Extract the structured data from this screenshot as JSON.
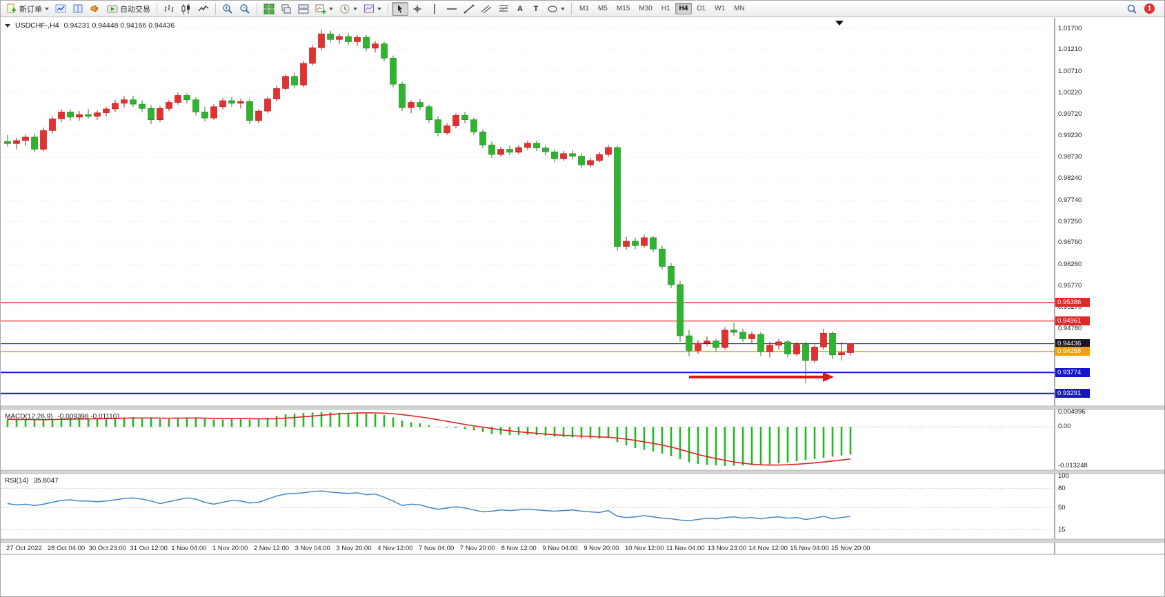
{
  "colors": {
    "up": "#e33030",
    "down": "#2eb52e",
    "up_stroke": "#a81818",
    "down_stroke": "#1d7f1d",
    "macd_hist": "#22b822",
    "macd_signal": "#e02020",
    "rsi_line": "#3f86c8",
    "grid": "#e9e9e9",
    "axis_line": "#555555"
  },
  "toolbar": {
    "buttons": [
      {
        "name": "new-order-button",
        "icon": "doc-plus",
        "label": "新订单",
        "dropdown": true
      },
      {
        "name": "charts-window-button",
        "icon": "chart-up"
      },
      {
        "name": "market-depth-button",
        "icon": "book"
      },
      {
        "name": "alerts-button",
        "icon": "megaphone"
      },
      {
        "name": "auto-trading-button",
        "icon": "autotrade",
        "label": "自动交易"
      },
      {
        "sep": true
      },
      {
        "name": "bar-chart-button",
        "icon": "bars"
      },
      {
        "name": "candlestick-chart-button",
        "icon": "candles"
      },
      {
        "name": "line-chart-button",
        "icon": "linechart"
      },
      {
        "sep": true
      },
      {
        "name": "zoom-in-button",
        "icon": "zoom-in"
      },
      {
        "name": "zoom-out-button",
        "icon": "zoom-out"
      },
      {
        "sep": true
      },
      {
        "name": "tile-windows-button",
        "icon": "tile"
      },
      {
        "name": "cascade-windows-button",
        "icon": "cascade"
      },
      {
        "name": "arrange-windows-button",
        "icon": "arrange"
      },
      {
        "name": "new-chart-button",
        "icon": "new-chart",
        "dropdown": true
      },
      {
        "name": "periods-button",
        "icon": "clock",
        "dropdown": true
      },
      {
        "name": "templates-button",
        "icon": "template",
        "dropdown": true
      },
      {
        "sep": true
      },
      {
        "name": "cursor-button",
        "icon": "cursor",
        "active": true
      },
      {
        "name": "crosshair-button",
        "icon": "crosshair"
      },
      {
        "name": "vertical-line-button",
        "icon": "vline"
      },
      {
        "name": "horizontal-line-button",
        "icon": "hline"
      },
      {
        "name": "trendline-button",
        "icon": "trendline"
      },
      {
        "name": "channel-button",
        "icon": "channel"
      },
      {
        "name": "fibonacci-button",
        "icon": "fibo"
      },
      {
        "name": "text-tool-button",
        "icon": "glyph",
        "glyph": "A"
      },
      {
        "name": "label-tool-button",
        "icon": "glyph",
        "glyph": "T"
      },
      {
        "name": "shapes-button",
        "icon": "shapes",
        "dropdown": true
      },
      {
        "sep": true
      }
    ],
    "timeframes": [
      "M1",
      "M5",
      "M15",
      "M30",
      "H1",
      "H4",
      "D1",
      "W1",
      "MN"
    ],
    "active_timeframe": "H4",
    "notification_count": "1"
  },
  "chart_data": {
    "type": "candlestick",
    "title": "USDCHF-,H4",
    "ohlc_text": "0.94231 0.94448 0.94166 0.94436",
    "ylim": [
      0.93,
      1.019
    ],
    "y_axis_labels": [
      "1.01700",
      "1.01210",
      "1.00710",
      "1.00220",
      "0.99720",
      "0.99230",
      "0.98730",
      "0.98240",
      "0.97740",
      "0.97250",
      "0.96760",
      "0.96260",
      "0.95770",
      "0.95270",
      "0.94780"
    ],
    "h_lines": [
      {
        "price": 0.95386,
        "label": "0.95386",
        "color": "#e02828",
        "width": 1.2
      },
      {
        "price": 0.94961,
        "label": "0.94961",
        "color": "#e02828",
        "width": 1.2
      },
      {
        "price": 0.94436,
        "label": "0.94436",
        "color": "#111111",
        "width": 1,
        "label_bg": "#15181e"
      },
      {
        "price": 0.94258,
        "label": "0.94258",
        "color": "#f5a000",
        "width": 1.5
      },
      {
        "price": 0.93774,
        "label": "0.93774",
        "color": "#1515cd",
        "width": 2
      },
      {
        "price": 0.93291,
        "label": "0.93291",
        "color": "#1515cd",
        "width": 2
      }
    ],
    "arrow": {
      "from_bar": 76,
      "to_bar": 92,
      "price": 0.9367,
      "color": "#d61a1a"
    },
    "candles": [
      [
        0.991,
        0.9925,
        0.9898,
        0.9905
      ],
      [
        0.9905,
        0.9918,
        0.9892,
        0.9912
      ],
      [
        0.9912,
        0.9926,
        0.99,
        0.992
      ],
      [
        0.992,
        0.9928,
        0.9885,
        0.9892
      ],
      [
        0.9892,
        0.9942,
        0.9888,
        0.9935
      ],
      [
        0.9935,
        0.9968,
        0.9928,
        0.9962
      ],
      [
        0.9962,
        0.9985,
        0.9955,
        0.9978
      ],
      [
        0.9978,
        0.9984,
        0.9958,
        0.9966
      ],
      [
        0.9966,
        0.998,
        0.9958,
        0.9972
      ],
      [
        0.9972,
        0.9985,
        0.9962,
        0.9968
      ],
      [
        0.9968,
        0.9982,
        0.996,
        0.9976
      ],
      [
        0.9976,
        0.999,
        0.9968,
        0.9985
      ],
      [
        0.9985,
        1.0006,
        0.9978,
        0.9998
      ],
      [
        0.9998,
        1.0014,
        0.9988,
        1.0006
      ],
      [
        1.0006,
        1.0015,
        0.999,
        0.9996
      ],
      [
        0.9996,
        1.0005,
        0.9978,
        0.9986
      ],
      [
        0.9986,
        0.9994,
        0.995,
        0.996
      ],
      [
        0.996,
        0.9992,
        0.9955,
        0.9986
      ],
      [
        0.9986,
        1.0006,
        0.998,
        1.0
      ],
      [
        1.0,
        1.0022,
        0.9995,
        1.0016
      ],
      [
        1.0016,
        1.0021,
        0.9998,
        1.0006
      ],
      [
        1.0006,
        1.0012,
        0.997,
        0.9978
      ],
      [
        0.9978,
        0.999,
        0.9956,
        0.9964
      ],
      [
        0.9964,
        0.9996,
        0.996,
        0.999
      ],
      [
        0.999,
        1.001,
        0.9984,
        1.0004
      ],
      [
        1.0004,
        1.0012,
        0.999,
        0.9998
      ],
      [
        0.9998,
        1.0008,
        0.9986,
        1.0002
      ],
      [
        1.0002,
        1.0008,
        0.995,
        0.9958
      ],
      [
        0.9958,
        0.9985,
        0.9952,
        0.998
      ],
      [
        0.998,
        1.0012,
        0.9975,
        1.0008
      ],
      [
        1.0008,
        1.0038,
        1.0002,
        1.0032
      ],
      [
        1.0032,
        1.0065,
        1.0028,
        1.006
      ],
      [
        1.006,
        1.0068,
        1.0032,
        1.004
      ],
      [
        1.004,
        1.0095,
        1.0035,
        1.009
      ],
      [
        1.009,
        1.0132,
        1.0085,
        1.0126
      ],
      [
        1.0126,
        1.0168,
        1.012,
        1.0158
      ],
      [
        1.0158,
        1.0165,
        1.0138,
        1.0145
      ],
      [
        1.0145,
        1.0158,
        1.0135,
        1.0152
      ],
      [
        1.0152,
        1.016,
        1.0132,
        1.014
      ],
      [
        1.014,
        1.0155,
        1.013,
        1.015
      ],
      [
        1.015,
        1.0156,
        1.0118,
        1.0125
      ],
      [
        1.0125,
        1.0142,
        1.0115,
        1.0135
      ],
      [
        1.0135,
        1.014,
        1.0095,
        1.0102
      ],
      [
        1.0102,
        1.0108,
        1.0035,
        1.0042
      ],
      [
        1.0042,
        1.0048,
        0.998,
        0.9988
      ],
      [
        0.9988,
        1.0005,
        0.9975,
        1.0
      ],
      [
        1.0,
        1.0008,
        0.9982,
        0.999
      ],
      [
        0.999,
        0.9995,
        0.9952,
        0.996
      ],
      [
        0.996,
        0.9968,
        0.9922,
        0.993
      ],
      [
        0.993,
        0.9952,
        0.9925,
        0.9946
      ],
      [
        0.9946,
        0.9975,
        0.994,
        0.997
      ],
      [
        0.997,
        0.9978,
        0.9952,
        0.996
      ],
      [
        0.996,
        0.9965,
        0.9925,
        0.9932
      ],
      [
        0.9932,
        0.9938,
        0.9895,
        0.9902
      ],
      [
        0.9902,
        0.991,
        0.9872,
        0.988
      ],
      [
        0.988,
        0.9898,
        0.9875,
        0.9892
      ],
      [
        0.9892,
        0.99,
        0.9878,
        0.9885
      ],
      [
        0.9885,
        0.9902,
        0.988,
        0.9896
      ],
      [
        0.9896,
        0.9912,
        0.989,
        0.9906
      ],
      [
        0.9906,
        0.9912,
        0.9888,
        0.9895
      ],
      [
        0.9895,
        0.9902,
        0.9878,
        0.9886
      ],
      [
        0.9886,
        0.9892,
        0.9862,
        0.987
      ],
      [
        0.987,
        0.9888,
        0.9865,
        0.9882
      ],
      [
        0.9882,
        0.989,
        0.9868,
        0.9876
      ],
      [
        0.9876,
        0.9882,
        0.9848,
        0.9856
      ],
      [
        0.9856,
        0.9872,
        0.985,
        0.9866
      ],
      [
        0.9866,
        0.9886,
        0.9862,
        0.988
      ],
      [
        0.988,
        0.9902,
        0.9875,
        0.9896
      ],
      [
        0.9896,
        0.99,
        0.9658,
        0.9668
      ],
      [
        0.9668,
        0.969,
        0.966,
        0.968
      ],
      [
        0.968,
        0.9688,
        0.9662,
        0.967
      ],
      [
        0.967,
        0.9695,
        0.9665,
        0.9688
      ],
      [
        0.9688,
        0.9692,
        0.9655,
        0.9662
      ],
      [
        0.9662,
        0.967,
        0.9615,
        0.9622
      ],
      [
        0.9622,
        0.963,
        0.9572,
        0.958
      ],
      [
        0.958,
        0.9588,
        0.9448,
        0.9462
      ],
      [
        0.9462,
        0.9475,
        0.9415,
        0.9428
      ],
      [
        0.9428,
        0.9452,
        0.942,
        0.9445
      ],
      [
        0.9445,
        0.946,
        0.9438,
        0.945
      ],
      [
        0.945,
        0.9455,
        0.9425,
        0.9435
      ],
      [
        0.9435,
        0.9482,
        0.943,
        0.9475
      ],
      [
        0.9475,
        0.9492,
        0.9462,
        0.947
      ],
      [
        0.947,
        0.9478,
        0.9448,
        0.9455
      ],
      [
        0.9455,
        0.9472,
        0.9445,
        0.9465
      ],
      [
        0.9465,
        0.947,
        0.9415,
        0.9425
      ],
      [
        0.9425,
        0.9448,
        0.9412,
        0.944
      ],
      [
        0.944,
        0.9455,
        0.943,
        0.9448
      ],
      [
        0.9448,
        0.9452,
        0.9412,
        0.942
      ],
      [
        0.942,
        0.9448,
        0.9415,
        0.9442
      ],
      [
        0.9442,
        0.9448,
        0.9352,
        0.9405
      ],
      [
        0.9405,
        0.9442,
        0.94,
        0.9436
      ],
      [
        0.9436,
        0.9478,
        0.943,
        0.9468
      ],
      [
        0.9468,
        0.9472,
        0.9408,
        0.9418
      ],
      [
        0.9418,
        0.9448,
        0.9405,
        0.94231
      ],
      [
        0.94231,
        0.94448,
        0.94166,
        0.94436
      ]
    ],
    "time_labels": [
      "27 Oct 2022",
      "28 Oct 04:00",
      "30 Oct 23:00",
      "31 Oct 12:00",
      "1 Nov 04:00",
      "1 Nov 20:00",
      "2 Nov 12:00",
      "3 Nov 04:00",
      "3 Nov 20:00",
      "4 Nov 12:00",
      "7 Nov 04:00",
      "7 Nov 20:00",
      "8 Nov 12:00",
      "9 Nov 04:00",
      "9 Nov 20:00",
      "10 Nov 12:00",
      "11 Nov 04:00",
      "13 Nov 23:00",
      "14 Nov 12:00",
      "15 Nov 04:00",
      "15 Nov 20:00"
    ],
    "macd": {
      "label": "MACD(12,26,9)",
      "values_text": "-0.009398 -0.011101",
      "axis": [
        "0.004996",
        "0.00",
        "-0.013248"
      ],
      "ylim": [
        -0.014,
        0.0052
      ],
      "signal_period": 9,
      "histogram": [
        0.0026,
        0.0024,
        0.0025,
        0.0023,
        0.0024,
        0.0027,
        0.003,
        0.0031,
        0.003,
        0.0029,
        0.0028,
        0.0029,
        0.003,
        0.0032,
        0.0033,
        0.0031,
        0.0029,
        0.0026,
        0.0027,
        0.003,
        0.0032,
        0.0031,
        0.0028,
        0.0025,
        0.0025,
        0.0027,
        0.0027,
        0.0025,
        0.0026,
        0.0031,
        0.0037,
        0.0043,
        0.0045,
        0.0047,
        0.0049,
        0.004996,
        0.0049,
        0.0048,
        0.0047,
        0.0047,
        0.0045,
        0.0044,
        0.004,
        0.0032,
        0.0022,
        0.0016,
        0.0012,
        0.0006,
        0.0001,
        -0.0003,
        -0.0004,
        -0.0007,
        -0.0012,
        -0.0018,
        -0.0024,
        -0.0026,
        -0.0028,
        -0.0028,
        -0.0027,
        -0.0028,
        -0.003,
        -0.0033,
        -0.0034,
        -0.0036,
        -0.0039,
        -0.004,
        -0.004,
        -0.0038,
        -0.0052,
        -0.0063,
        -0.0072,
        -0.0078,
        -0.0084,
        -0.0091,
        -0.0099,
        -0.011,
        -0.012,
        -0.0126,
        -0.0129,
        -0.0131,
        -0.013248,
        -0.0132,
        -0.0131,
        -0.013,
        -0.0129,
        -0.0127,
        -0.0124,
        -0.0121,
        -0.0117,
        -0.0113,
        -0.0109,
        -0.0105,
        -0.0101,
        -0.0097,
        -0.009398
      ]
    },
    "rsi": {
      "label": "RSI(14)",
      "value_text": "35.8047",
      "axis": [
        "100",
        "80",
        "50",
        "15"
      ],
      "levels": [
        80,
        50,
        15
      ],
      "ylim": [
        0,
        100
      ],
      "values": [
        56,
        54,
        55,
        53,
        55,
        58,
        61,
        62,
        60,
        60,
        59,
        60,
        62,
        64,
        65,
        63,
        60,
        56,
        59,
        62,
        65,
        63,
        58,
        55,
        58,
        61,
        60,
        57,
        58,
        63,
        68,
        71,
        72,
        73,
        75,
        76,
        74,
        73,
        72,
        73,
        70,
        71,
        66,
        60,
        53,
        55,
        54,
        50,
        47,
        49,
        51,
        49,
        46,
        43,
        44,
        46,
        45,
        46,
        47,
        46,
        45,
        44,
        45,
        46,
        44,
        43,
        42,
        45,
        36,
        34,
        35,
        37,
        35,
        33,
        32,
        30,
        29,
        31,
        33,
        32,
        34,
        35,
        33,
        34,
        32,
        34,
        35,
        33,
        34,
        31,
        33,
        36,
        32,
        34,
        35.8
      ]
    }
  }
}
